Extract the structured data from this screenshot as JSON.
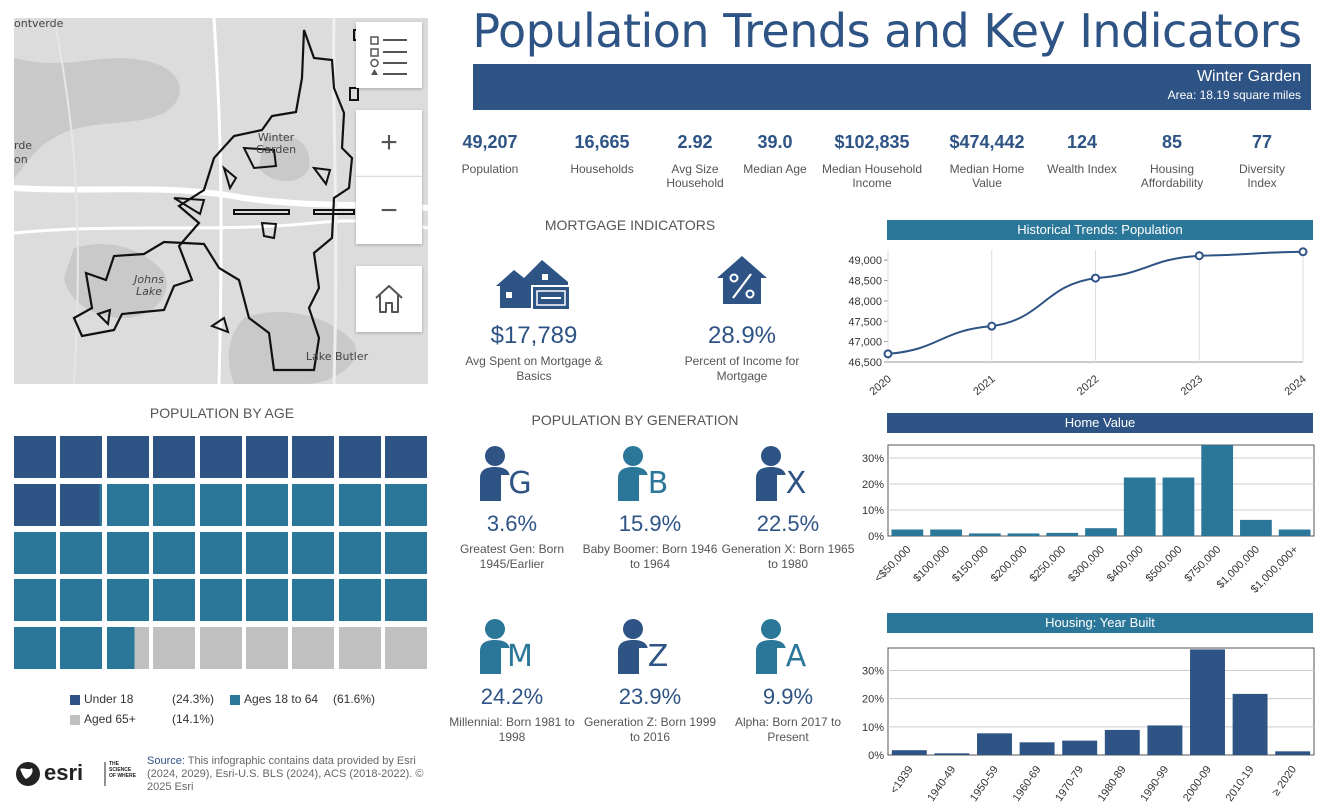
{
  "title": "Population Trends and Key Indicators",
  "banner": {
    "place": "Winter Garden",
    "area": "Area: 18.19 square miles"
  },
  "colors": {
    "navy": "#2e5385",
    "teal": "#2b7799",
    "grey": "#c0c0c0",
    "header_teal": "#2b7799"
  },
  "map": {
    "labels": {
      "montverde": "ontverde",
      "winter_garden_1": "Winter",
      "winter_garden_2": "Garden",
      "johns_lake_1": "Johns",
      "johns_lake_2": "Lake",
      "lake_butler": "Lake Butler",
      "left_rde": "rde",
      "left_on": "on"
    },
    "controls": {
      "zoom_in": "+",
      "zoom_out": "−"
    }
  },
  "stats": [
    {
      "value": "49,207",
      "label": "Population"
    },
    {
      "value": "16,665",
      "label": "Households"
    },
    {
      "value": "2.92",
      "label": "Avg Size Household"
    },
    {
      "value": "39.0",
      "label": "Median Age"
    },
    {
      "value": "$102,835",
      "label": "Median Household Income"
    },
    {
      "value": "$474,442",
      "label": "Median Home Value"
    },
    {
      "value": "124",
      "label": "Wealth Index"
    },
    {
      "value": "85",
      "label": "Housing Affordability"
    },
    {
      "value": "77",
      "label": "Diversity Index"
    }
  ],
  "mortgage": {
    "title": "MORTGAGE INDICATORS",
    "items": [
      {
        "value": "$17,789",
        "label": "Avg Spent on Mortgage & Basics",
        "icon": "house-money-icon"
      },
      {
        "value": "28.9%",
        "label": "Percent of Income for Mortgage",
        "icon": "house-percent-icon"
      }
    ]
  },
  "age": {
    "title": "POPULATION BY AGE",
    "legend": [
      {
        "label": "Under 18",
        "pct": "(24.3%)"
      },
      {
        "label": "Ages 18 to 64",
        "pct": "(61.6%)"
      },
      {
        "label": "Aged 65+",
        "pct": "(14.1%)"
      }
    ],
    "shares": {
      "under18": 24.3,
      "age18to64": 61.6,
      "age65plus": 14.1
    }
  },
  "generation": {
    "title": "POPULATION BY GENERATION",
    "items": [
      {
        "letter": "G",
        "value": "3.6%",
        "label": "Greatest Gen: Born 1945/Earlier"
      },
      {
        "letter": "B",
        "value": "15.9%",
        "label": "Baby Boomer: Born 1946 to 1964"
      },
      {
        "letter": "X",
        "value": "22.5%",
        "label": "Generation X: Born 1965 to 1980"
      },
      {
        "letter": "M",
        "value": "24.2%",
        "label": "Millennial: Born 1981 to 1998"
      },
      {
        "letter": "Z",
        "value": "23.9%",
        "label": "Generation Z: Born 1999 to 2016"
      },
      {
        "letter": "A",
        "value": "9.9%",
        "label": "Alpha: Born 2017 to Present"
      }
    ]
  },
  "chart_data": [
    {
      "type": "line",
      "title": "Historical Trends: Population",
      "x": [
        "2020",
        "2021",
        "2022",
        "2023",
        "2024"
      ],
      "values": [
        46700,
        47380,
        48560,
        49110,
        49207
      ],
      "ylim": [
        46500,
        49250
      ],
      "yticks": [
        46500,
        47000,
        47500,
        48000,
        48500,
        49000
      ],
      "ytick_labels": [
        "46,500",
        "47,000",
        "47,500",
        "48,000",
        "48,500",
        "49,000"
      ]
    },
    {
      "type": "bar",
      "title": "Home Value",
      "categories": [
        "<$50,000",
        "$100,000",
        "$150,000",
        "$200,000",
        "$250,000",
        "$300,000",
        "$400,000",
        "$500,000",
        "$750,000",
        "$1,000,000",
        "$1,000,000+"
      ],
      "values": [
        2.5,
        2.5,
        1,
        1,
        1.2,
        3,
        22.5,
        22.5,
        35,
        6.2,
        2.5
      ],
      "ylim": [
        0,
        35
      ],
      "yticks": [
        0,
        10,
        20,
        30
      ],
      "ytick_labels": [
        "0%",
        "10%",
        "20%",
        "30%"
      ]
    },
    {
      "type": "bar",
      "title": "Housing: Year Built",
      "categories": [
        "<1939",
        "1940-49",
        "1950-59",
        "1960-69",
        "1970-79",
        "1980-89",
        "1990-99",
        "2000-09",
        "2010-19",
        "≥ 2020"
      ],
      "values": [
        1.7,
        0.6,
        7.7,
        4.5,
        5.1,
        8.9,
        10.5,
        37.5,
        21.7,
        1.3
      ],
      "ylim": [
        0,
        38
      ],
      "yticks": [
        0,
        10,
        20,
        30
      ],
      "ytick_labels": [
        "0%",
        "10%",
        "20%",
        "30%"
      ]
    }
  ],
  "footer": {
    "logo": "esri",
    "tagline": "THE SCIENCE OF WHERE",
    "source_label": "Source:",
    "source_text": "This infographic contains data provided by Esri (2024, 2029), Esri-U.S. BLS (2024), ACS (2018-2022). © 2025 Esri"
  }
}
